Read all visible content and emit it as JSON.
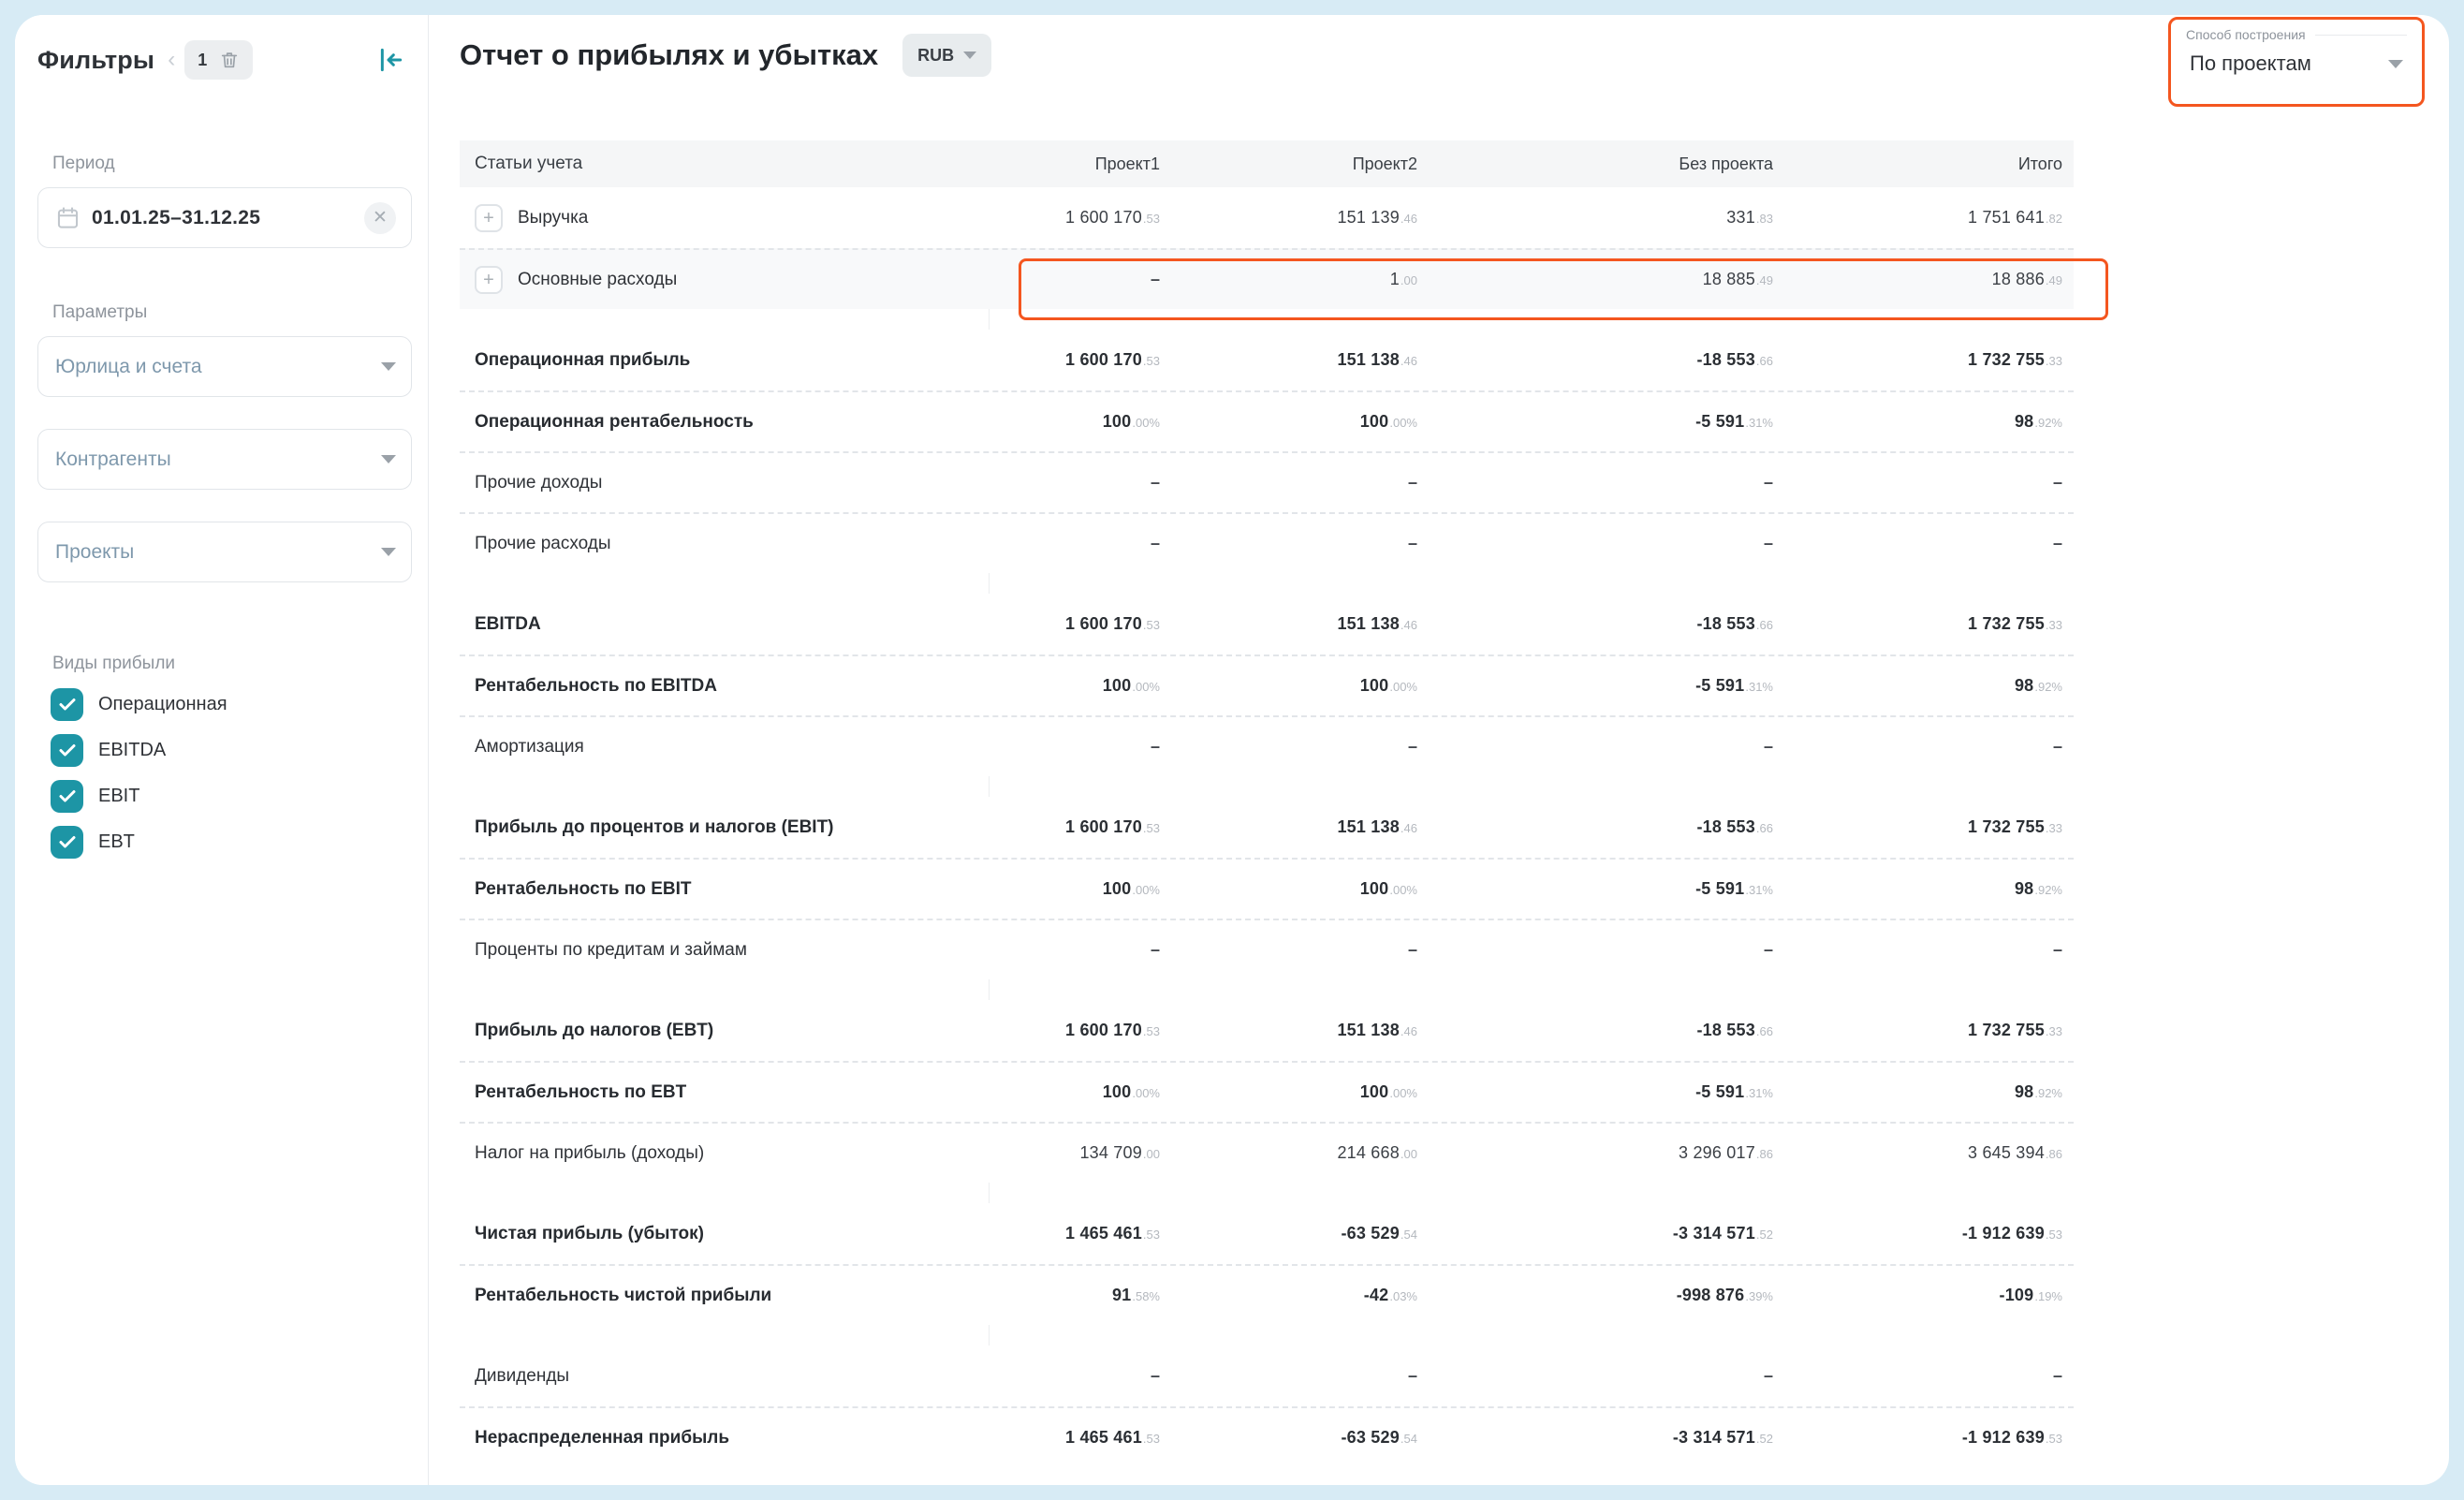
{
  "colors": {
    "page_bg": "#d7ebf5",
    "accent_teal": "#1d95a5",
    "accent_orange": "#f4561f"
  },
  "sidebar": {
    "title": "Фильтры",
    "filter_count": "1",
    "period_label": "Период",
    "period_value": "01.01.25–31.12.25",
    "params_label": "Параметры",
    "dropdowns": [
      "Юрлица и счета",
      "Контрагенты",
      "Проекты"
    ],
    "profit_types_label": "Виды прибыли",
    "profit_types": [
      {
        "label": "Операционная",
        "checked": true
      },
      {
        "label": "EBITDA",
        "checked": true
      },
      {
        "label": "EBIT",
        "checked": true
      },
      {
        "label": "EBT",
        "checked": true
      }
    ]
  },
  "header": {
    "title": "Отчет о прибылях и убытках",
    "currency": "RUB",
    "builder_label": "Способ построения",
    "builder_value": "По проектам"
  },
  "table": {
    "first_col_header": "Статьи учета",
    "columns": [
      "Проект1",
      "Проект2",
      "Без проекта",
      "Итого"
    ],
    "rows": [
      {
        "label": "Выручка",
        "bold": false,
        "expandable": true,
        "shaded": false,
        "section_start": false,
        "values": [
          "1 600 170.53",
          "151 139.46",
          "331.83",
          "1 751 641.82"
        ]
      },
      {
        "label": "Основные расходы",
        "bold": false,
        "expandable": true,
        "shaded": true,
        "section_start": false,
        "values": [
          "–",
          "1.00",
          "18 885.49",
          "18 886.49"
        ]
      },
      {
        "label": "Операционная прибыль",
        "bold": true,
        "expandable": false,
        "shaded": false,
        "section_start": true,
        "values": [
          "1 600 170.53",
          "151 138.46",
          "-18 553.66",
          "1 732 755.33"
        ]
      },
      {
        "label": "Операционная рентабельность",
        "bold": true,
        "expandable": false,
        "shaded": false,
        "section_start": false,
        "values": [
          "100.00%",
          "100.00%",
          "-5 591.31%",
          "98.92%"
        ]
      },
      {
        "label": "Прочие доходы",
        "bold": false,
        "expandable": false,
        "shaded": false,
        "section_start": false,
        "values": [
          "–",
          "–",
          "–",
          "–"
        ]
      },
      {
        "label": "Прочие расходы",
        "bold": false,
        "expandable": false,
        "shaded": false,
        "section_start": false,
        "values": [
          "–",
          "–",
          "–",
          "–"
        ]
      },
      {
        "label": "EBITDA",
        "bold": true,
        "expandable": false,
        "shaded": false,
        "section_start": true,
        "values": [
          "1 600 170.53",
          "151 138.46",
          "-18 553.66",
          "1 732 755.33"
        ]
      },
      {
        "label": "Рентабельность по EBITDA",
        "bold": true,
        "expandable": false,
        "shaded": false,
        "section_start": false,
        "values": [
          "100.00%",
          "100.00%",
          "-5 591.31%",
          "98.92%"
        ]
      },
      {
        "label": "Амортизация",
        "bold": false,
        "expandable": false,
        "shaded": false,
        "section_start": false,
        "values": [
          "–",
          "–",
          "–",
          "–"
        ]
      },
      {
        "label": "Прибыль до процентов и налогов (EBIT)",
        "bold": true,
        "expandable": false,
        "shaded": false,
        "section_start": true,
        "values": [
          "1 600 170.53",
          "151 138.46",
          "-18 553.66",
          "1 732 755.33"
        ]
      },
      {
        "label": "Рентабельность по EBIT",
        "bold": true,
        "expandable": false,
        "shaded": false,
        "section_start": false,
        "values": [
          "100.00%",
          "100.00%",
          "-5 591.31%",
          "98.92%"
        ]
      },
      {
        "label": "Проценты по кредитам и займам",
        "bold": false,
        "expandable": false,
        "shaded": false,
        "section_start": false,
        "values": [
          "–",
          "–",
          "–",
          "–"
        ]
      },
      {
        "label": "Прибыль до налогов (EBT)",
        "bold": true,
        "expandable": false,
        "shaded": false,
        "section_start": true,
        "values": [
          "1 600 170.53",
          "151 138.46",
          "-18 553.66",
          "1 732 755.33"
        ]
      },
      {
        "label": "Рентабельность по EBT",
        "bold": true,
        "expandable": false,
        "shaded": false,
        "section_start": false,
        "values": [
          "100.00%",
          "100.00%",
          "-5 591.31%",
          "98.92%"
        ]
      },
      {
        "label": "Налог на прибыль (доходы)",
        "bold": false,
        "expandable": false,
        "shaded": false,
        "section_start": false,
        "values": [
          "134 709.00",
          "214 668.00",
          "3 296 017.86",
          "3 645 394.86"
        ]
      },
      {
        "label": "Чистая прибыль (убыток)",
        "bold": true,
        "expandable": false,
        "shaded": false,
        "section_start": true,
        "values": [
          "1 465 461.53",
          "-63 529.54",
          "-3 314 571.52",
          "-1 912 639.53"
        ]
      },
      {
        "label": "Рентабельность чистой прибыли",
        "bold": true,
        "expandable": false,
        "shaded": false,
        "section_start": false,
        "values": [
          "91.58%",
          "-42.03%",
          "-998 876.39%",
          "-109.19%"
        ]
      },
      {
        "label": "Дивиденды",
        "bold": false,
        "expandable": false,
        "shaded": false,
        "section_start": true,
        "values": [
          "–",
          "–",
          "–",
          "–"
        ]
      },
      {
        "label": "Нераспределенная прибыль",
        "bold": true,
        "expandable": false,
        "shaded": false,
        "section_start": false,
        "values": [
          "1 465 461.53",
          "-63 529.54",
          "-3 314 571.52",
          "-1 912 639.53"
        ]
      }
    ]
  }
}
